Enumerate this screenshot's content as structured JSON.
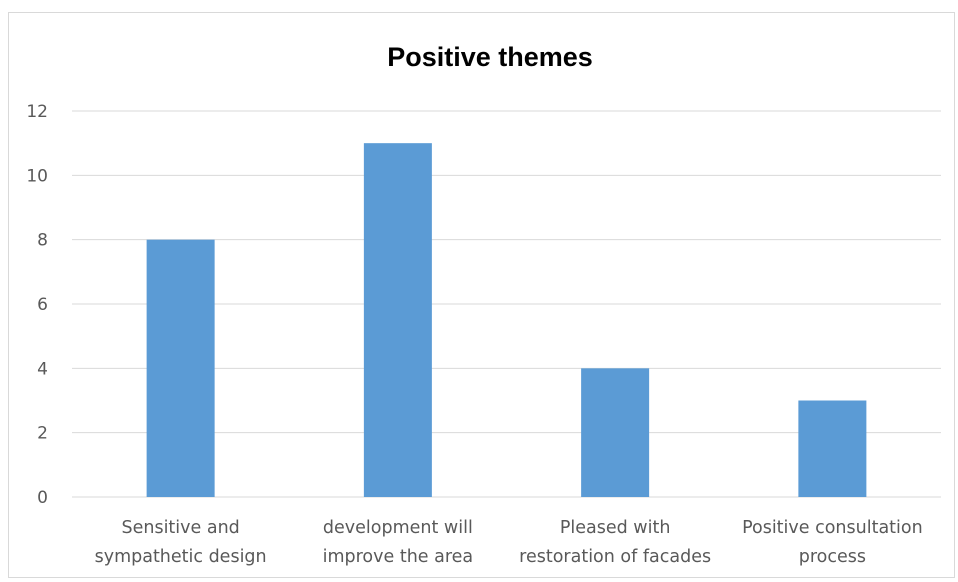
{
  "chart_data": {
    "type": "bar",
    "title": "Positive themes",
    "categories": [
      [
        "Sensitive and",
        "sympathetic design"
      ],
      [
        "development will",
        "improve the area"
      ],
      [
        "Pleased with",
        "restoration of facades"
      ],
      [
        "Positive consultation",
        "process"
      ]
    ],
    "values": [
      8,
      11,
      4,
      3
    ],
    "ylim": [
      0,
      12
    ],
    "yticks": [
      0,
      2,
      4,
      6,
      8,
      10,
      12
    ],
    "xlabel": "",
    "ylabel": "",
    "grid": true,
    "legend": "none",
    "bar_color": "#5b9bd5",
    "grid_color": "#d9d9d9"
  }
}
